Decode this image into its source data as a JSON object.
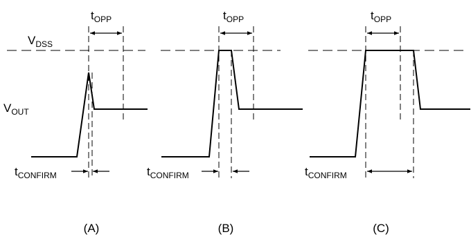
{
  "labels": {
    "vdss": {
      "main": "V",
      "sub": "DSS"
    },
    "vout": {
      "main": "V",
      "sub": "OUT"
    },
    "topp": {
      "main": "t",
      "sub": "OPP"
    },
    "tconfirm": {
      "main": "t",
      "sub": "CONFIRM"
    }
  },
  "panels": [
    {
      "id": "A",
      "caption": "(A)"
    },
    {
      "id": "B",
      "caption": "(B)"
    },
    {
      "id": "C",
      "caption": "(C)"
    }
  ],
  "colors": {
    "stroke": "#000000",
    "background": "#ffffff"
  }
}
